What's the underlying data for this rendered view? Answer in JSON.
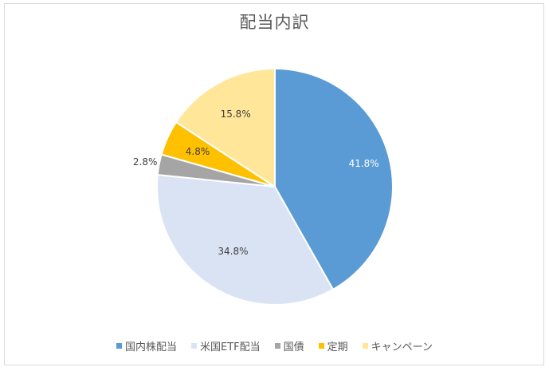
{
  "chart_data": {
    "type": "pie",
    "title": "配当内訳",
    "categories": [
      "国内株配当",
      "米国ETF配当",
      "国債",
      "定期",
      "キャンペーン"
    ],
    "values": [
      41.8,
      34.8,
      2.8,
      4.8,
      15.8
    ],
    "labels": [
      "41.8%",
      "34.8%",
      "2.8%",
      "4.8%",
      "15.8%"
    ],
    "colors": [
      "#5b9bd5",
      "#dae3f3",
      "#a5a5a5",
      "#ffc000",
      "#ffe699"
    ],
    "legend_position": "bottom",
    "start_angle_deg": 0,
    "direction": "clockwise"
  },
  "legend": {
    "items": [
      {
        "label": "国内株配当",
        "color": "#5b9bd5"
      },
      {
        "label": "米国ETF配当",
        "color": "#dae3f3"
      },
      {
        "label": "国債",
        "color": "#a5a5a5"
      },
      {
        "label": "定期",
        "color": "#ffc000"
      },
      {
        "label": "キャンペーン",
        "color": "#ffe699"
      }
    ]
  }
}
